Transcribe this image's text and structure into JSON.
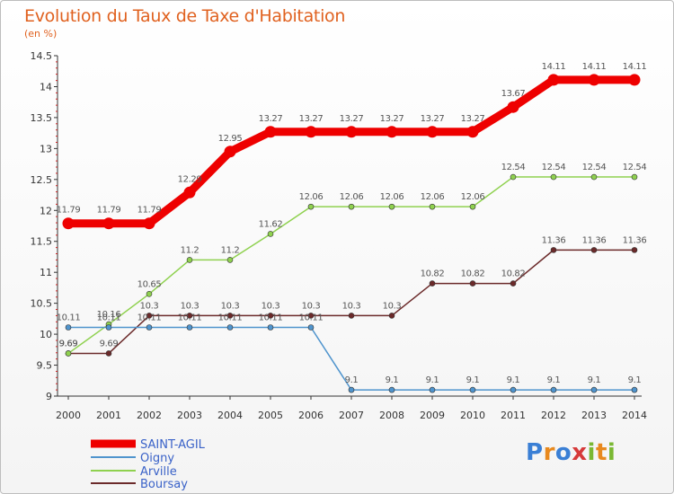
{
  "chart_data": {
    "type": "line",
    "title": "Evolution du Taux de Taxe d'Habitation",
    "subtitle": "(en %)",
    "x": [
      "2000",
      "2001",
      "2002",
      "2003",
      "2004",
      "2005",
      "2006",
      "2007",
      "2008",
      "2009",
      "2010",
      "2011",
      "2012",
      "2013",
      "2014"
    ],
    "ylim": [
      9,
      14.5
    ],
    "yticks": [
      "9",
      "9.5",
      "10",
      "10.5",
      "11",
      "11.5",
      "12",
      "12.5",
      "13",
      "13.5",
      "14",
      "14.5"
    ],
    "grid": false,
    "legend_position": "bottom-left",
    "series": [
      {
        "name": "SAINT-AGIL",
        "color": "#ee0000",
        "values": [
          11.79,
          11.79,
          11.79,
          12.29,
          12.95,
          13.27,
          13.27,
          13.27,
          13.27,
          13.27,
          13.27,
          13.67,
          14.11,
          14.11,
          14.11
        ],
        "labels": [
          "11.79",
          "11.79",
          "11.79",
          "12.29",
          "12.95",
          "13.27",
          "13.27",
          "13.27",
          "13.27",
          "13.27",
          "13.27",
          "13.67",
          "14.11",
          "14.11",
          "14.11"
        ]
      },
      {
        "name": "Oigny",
        "color": "#4f94cd",
        "values": [
          10.11,
          10.11,
          10.11,
          10.11,
          10.11,
          10.11,
          10.11,
          9.1,
          9.1,
          9.1,
          9.1,
          9.1,
          9.1,
          9.1,
          9.1
        ],
        "labels": [
          "10.11",
          "10.11",
          "10.11",
          "10.11",
          "10.11",
          "10.11",
          "10.11",
          "9.1",
          "9.1",
          "9.1",
          "9.1",
          "9.1",
          "9.1",
          "9.1",
          "9.1"
        ]
      },
      {
        "name": "Arville",
        "color": "#8fd14f",
        "values": [
          9.69,
          10.16,
          10.65,
          11.2,
          11.2,
          11.62,
          12.06,
          12.06,
          12.06,
          12.06,
          12.06,
          12.54,
          12.54,
          12.54,
          12.54
        ],
        "labels": [
          "9.69",
          "10.16",
          "10.65",
          "11.2",
          "11.2",
          "11.62",
          "12.06",
          "12.06",
          "12.06",
          "12.06",
          "12.06",
          "12.54",
          "12.54",
          "12.54",
          "12.54"
        ]
      },
      {
        "name": "Boursay",
        "color": "#6b2a2a",
        "values": [
          9.69,
          9.69,
          10.3,
          10.3,
          10.3,
          10.3,
          10.3,
          10.3,
          10.3,
          10.82,
          10.82,
          10.82,
          11.36,
          11.36,
          11.36
        ],
        "labels": [
          "9.69",
          "9.69",
          "10.3",
          "10.3",
          "10.3",
          "10.3",
          "10.3",
          "10.3",
          "10.3",
          "10.82",
          "10.82",
          "10.82",
          "11.36",
          "11.36",
          "11.36"
        ]
      }
    ]
  },
  "logo": {
    "letters": [
      "P",
      "r",
      "o",
      "x",
      "i",
      "t",
      "i"
    ],
    "colors": [
      "#3a7fd5",
      "#e8891e",
      "#3a7fd5",
      "#d63a3a",
      "#7ab833",
      "#e8891e",
      "#7ab833"
    ]
  }
}
